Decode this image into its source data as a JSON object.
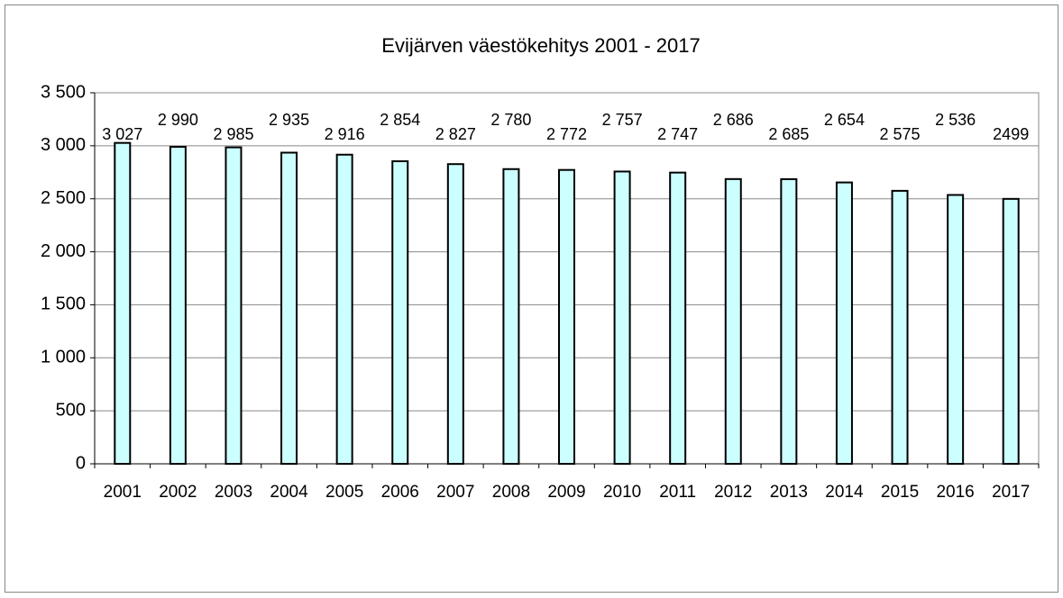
{
  "chart_data": {
    "type": "bar",
    "title": "Evijärven väestökehitys 2001 - 2017",
    "categories": [
      "2001",
      "2002",
      "2003",
      "2004",
      "2005",
      "2006",
      "2007",
      "2008",
      "2009",
      "2010",
      "2011",
      "2012",
      "2013",
      "2014",
      "2015",
      "2016",
      "2017"
    ],
    "values": [
      3027,
      2990,
      2985,
      2935,
      2916,
      2854,
      2827,
      2780,
      2772,
      2757,
      2747,
      2686,
      2685,
      2654,
      2575,
      2536,
      2499
    ],
    "value_labels": [
      "3 027",
      "2 990",
      "2 985",
      "2 935",
      "2 916",
      "2 854",
      "2 827",
      "2 780",
      "2 772",
      "2 757",
      "2 747",
      "2 686",
      "2 685",
      "2 654",
      "2 575",
      "2 536",
      "2499"
    ],
    "color": "#ccffff",
    "ylim": [
      0,
      3500
    ],
    "yticks": [
      0,
      500,
      {
        "value": 1000,
        "label": "1 000"
      },
      {
        "value": 1500,
        "label": "1 500"
      },
      {
        "value": 2000,
        "label": "2 000"
      },
      {
        "value": 2500,
        "label": "2 500"
      },
      {
        "value": 3000,
        "label": "3 000"
      },
      {
        "value": 3500,
        "label": "3 500"
      }
    ],
    "grid": true
  }
}
